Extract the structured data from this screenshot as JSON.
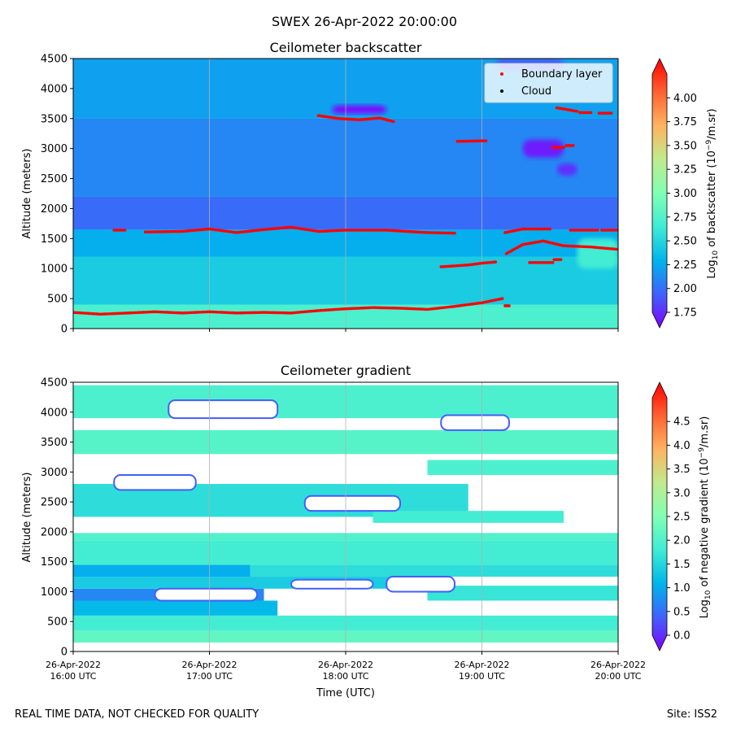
{
  "suptitle": "SWEX 26-Apr-2022 20:00:00",
  "footer_left": "REAL TIME DATA, NOT CHECKED FOR QUALITY",
  "footer_right": "Site: ISS2",
  "colors": {
    "rainbow": [
      "#8000ff",
      "#4062fa",
      "#00b5eb",
      "#40ecd4",
      "#80ffb4",
      "#c0eb8d",
      "#ffb360",
      "#ff6231",
      "#ff0000"
    ],
    "boundary_layer": "#ff0000",
    "cloud": "#000000",
    "grid": "#b0b0b0"
  },
  "chart_data": [
    {
      "type": "heatmap",
      "title": "Ceilometer backscatter",
      "xlabel": "",
      "ylabel": "Altitude (meters)",
      "xlim_hours": [
        16.0,
        20.0
      ],
      "ylim": [
        0,
        4500
      ],
      "yticks": [
        0,
        500,
        1000,
        1500,
        2000,
        2500,
        3000,
        3500,
        4000,
        4500
      ],
      "xticks_hours": [
        16,
        17,
        18,
        19,
        20
      ],
      "grid": "vertical",
      "legend_position": "top-right",
      "legend": [
        "Boundary layer",
        "Cloud"
      ],
      "colorbar": {
        "label_pre": "Log",
        "label_sub": "10",
        "label_mid": " of backscatter (10",
        "label_sup": "−9",
        "label_post": "/m.sr)",
        "range": [
          1.75,
          4.25
        ],
        "ticks": [
          "1.75",
          "2.00",
          "2.25",
          "2.50",
          "2.75",
          "3.00",
          "3.25",
          "3.50",
          "3.75",
          "4.00"
        ],
        "tick_values": [
          1.75,
          2.0,
          2.25,
          2.5,
          2.75,
          3.0,
          3.25,
          3.5,
          3.75,
          4.0
        ],
        "extend": "both"
      },
      "field": [
        {
          "alt": [
            0,
            400
          ],
          "value": 2.75
        },
        {
          "alt": [
            400,
            1200
          ],
          "value": 2.5
        },
        {
          "alt": [
            1200,
            1650
          ],
          "value": 2.35
        },
        {
          "alt": [
            1650,
            2200
          ],
          "value": 2.1
        },
        {
          "alt": [
            2200,
            3500
          ],
          "value": 2.2
        },
        {
          "alt": [
            3500,
            4500
          ],
          "value": 2.3
        }
      ],
      "features": [
        {
          "t": [
            17.9,
            18.3
          ],
          "alt": [
            3580,
            3720
          ],
          "value": 1.8
        },
        {
          "t": [
            19.3,
            19.6
          ],
          "alt": [
            2850,
            3150
          ],
          "value": 1.85
        },
        {
          "t": [
            19.55,
            19.7
          ],
          "alt": [
            2550,
            2750
          ],
          "value": 1.9
        },
        {
          "t": [
            19.7,
            20.0
          ],
          "alt": [
            1000,
            1500
          ],
          "value": 2.7
        },
        {
          "t": [
            19.1,
            19.6
          ],
          "alt": [
            4300,
            4500
          ],
          "value": 2.05
        }
      ],
      "series": [
        {
          "name": "Boundary layer",
          "segments": [
            {
              "t": [
                16.0,
                16.2,
                16.4,
                16.6,
                16.8,
                17.0,
                17.2,
                17.4,
                17.6,
                17.8,
                18.0,
                18.2,
                18.4,
                18.6,
                18.8,
                19.0,
                19.15
              ],
              "alt": [
                270,
                240,
                260,
                280,
                260,
                280,
                260,
                270,
                260,
                300,
                330,
                350,
                340,
                320,
                370,
                430,
                500
              ]
            },
            {
              "t": [
                16.3,
                16.38
              ],
              "alt": [
                1640,
                1640
              ]
            },
            {
              "t": [
                16.53,
                16.8,
                17.0,
                17.2,
                17.4,
                17.6,
                17.8,
                18.0,
                18.3,
                18.6,
                18.8
              ],
              "alt": [
                1610,
                1620,
                1660,
                1600,
                1650,
                1690,
                1620,
                1640,
                1640,
                1600,
                1590
              ]
            },
            {
              "t": [
                17.8,
                17.95,
                18.1,
                18.25,
                18.35
              ],
              "alt": [
                3550,
                3500,
                3480,
                3510,
                3450
              ]
            },
            {
              "t": [
                18.7,
                18.9,
                19.0,
                19.1
              ],
              "alt": [
                1030,
                1060,
                1090,
                1110
              ]
            },
            {
              "t": [
                18.82,
                19.03
              ],
              "alt": [
                3120,
                3130
              ]
            },
            {
              "t": [
                19.17,
                19.2
              ],
              "alt": [
                380,
                380
              ]
            },
            {
              "t": [
                19.17,
                19.3,
                19.5
              ],
              "alt": [
                1600,
                1660,
                1660
              ]
            },
            {
              "t": [
                19.18,
                19.3,
                19.45,
                19.6,
                19.8,
                20.0
              ],
              "alt": [
                1250,
                1400,
                1460,
                1380,
                1360,
                1320
              ]
            },
            {
              "t": [
                19.35,
                19.52
              ],
              "alt": [
                1100,
                1100
              ]
            },
            {
              "t": [
                19.53,
                19.58
              ],
              "alt": [
                1150,
                1150
              ]
            },
            {
              "t": [
                19.65,
                19.85
              ],
              "alt": [
                1640,
                1640
              ]
            },
            {
              "t": [
                19.88,
                20.0
              ],
              "alt": [
                1640,
                1640
              ]
            },
            {
              "t": [
                19.52,
                19.6
              ],
              "alt": [
                3020,
                3020
              ]
            },
            {
              "t": [
                19.62,
                19.67
              ],
              "alt": [
                3050,
                3050
              ]
            },
            {
              "t": [
                19.55,
                19.7
              ],
              "alt": [
                3680,
                3620
              ]
            },
            {
              "t": [
                19.72,
                19.8
              ],
              "alt": [
                3600,
                3600
              ]
            },
            {
              "t": [
                19.86,
                19.95
              ],
              "alt": [
                3590,
                3590
              ]
            }
          ]
        },
        {
          "name": "Cloud",
          "segments": []
        }
      ]
    },
    {
      "type": "heatmap",
      "title": "Ceilometer gradient",
      "xlabel": "Time (UTC)",
      "ylabel": "Altitude (meters)",
      "xlim_hours": [
        16.0,
        20.0
      ],
      "ylim": [
        0,
        4500
      ],
      "yticks": [
        0,
        500,
        1000,
        1500,
        2000,
        2500,
        3000,
        3500,
        4000,
        4500
      ],
      "xticks_hours": [
        16,
        17,
        18,
        19,
        20
      ],
      "xticklabels": [
        [
          "26-Apr-2022",
          "16:00 UTC"
        ],
        [
          "26-Apr-2022",
          "17:00 UTC"
        ],
        [
          "26-Apr-2022",
          "18:00 UTC"
        ],
        [
          "26-Apr-2022",
          "19:00 UTC"
        ],
        [
          "26-Apr-2022",
          "20:00 UTC"
        ]
      ],
      "grid": "vertical",
      "colorbar": {
        "label_pre": "Log",
        "label_sub": "10",
        "label_mid": " of negative gradient (10",
        "label_sup": "−9",
        "label_post": "/m.sr)",
        "range": [
          0.0,
          5.0
        ],
        "ticks": [
          "0.0",
          "0.5",
          "1.0",
          "1.5",
          "2.0",
          "2.5",
          "3.0",
          "3.5",
          "4.0",
          "4.5"
        ],
        "tick_values": [
          0.0,
          0.5,
          1.0,
          1.5,
          2.0,
          2.5,
          3.0,
          3.5,
          4.0,
          4.5
        ],
        "extend": "both"
      },
      "bands": [
        {
          "t": [
            16.0,
            20.0
          ],
          "alt": [
            150,
            350
          ],
          "value": 2.2
        },
        {
          "t": [
            16.0,
            20.0
          ],
          "alt": [
            350,
            600
          ],
          "value": 1.9
        },
        {
          "t": [
            16.0,
            17.5
          ],
          "alt": [
            600,
            850
          ],
          "value": 1.3
        },
        {
          "t": [
            16.0,
            17.4
          ],
          "alt": [
            850,
            1050
          ],
          "value": 0.9
        },
        {
          "t": [
            16.0,
            18.6
          ],
          "alt": [
            1050,
            1250
          ],
          "value": 1.5
        },
        {
          "t": [
            16.0,
            17.3
          ],
          "alt": [
            1250,
            1450
          ],
          "value": 1.2
        },
        {
          "t": [
            17.3,
            20.0
          ],
          "alt": [
            1250,
            1450
          ],
          "value": 1.7
        },
        {
          "t": [
            16.0,
            20.0
          ],
          "alt": [
            1450,
            1850
          ],
          "value": 1.9
        },
        {
          "t": [
            18.6,
            20.0
          ],
          "alt": [
            850,
            1100
          ],
          "value": 1.8
        },
        {
          "t": [
            16.0,
            20.0
          ],
          "alt": [
            1850,
            1980
          ],
          "value": 2.05
        },
        {
          "t": [
            16.0,
            18.9
          ],
          "alt": [
            2250,
            2800
          ],
          "value": 1.7
        },
        {
          "t": [
            18.2,
            19.6
          ],
          "alt": [
            2150,
            2350
          ],
          "value": 1.9
        },
        {
          "t": [
            18.6,
            20.0
          ],
          "alt": [
            2950,
            3200
          ],
          "value": 2.0
        },
        {
          "t": [
            16.0,
            20.0
          ],
          "alt": [
            3300,
            3700
          ],
          "value": 2.1
        },
        {
          "t": [
            16.0,
            20.0
          ],
          "alt": [
            3900,
            4450
          ],
          "value": 2.0
        }
      ],
      "gaps": [
        {
          "t": [
            16.6,
            17.35
          ],
          "alt": [
            850,
            1050
          ]
        },
        {
          "t": [
            17.6,
            18.2
          ],
          "alt": [
            1050,
            1200
          ]
        },
        {
          "t": [
            18.3,
            18.8
          ],
          "alt": [
            1000,
            1250
          ]
        },
        {
          "t": [
            16.3,
            16.9
          ],
          "alt": [
            2700,
            2950
          ]
        },
        {
          "t": [
            17.7,
            18.4
          ],
          "alt": [
            2350,
            2600
          ]
        },
        {
          "t": [
            16.7,
            17.5
          ],
          "alt": [
            3900,
            4200
          ]
        },
        {
          "t": [
            18.7,
            19.2
          ],
          "alt": [
            3700,
            3950
          ]
        }
      ]
    }
  ]
}
